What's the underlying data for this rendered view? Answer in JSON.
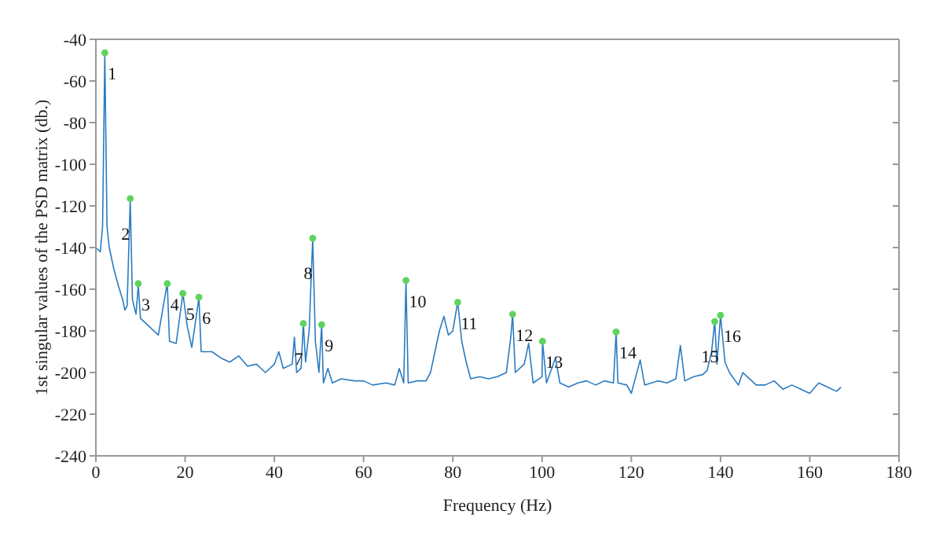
{
  "chart_data": {
    "type": "line",
    "xlabel": "Frequency (Hz)",
    "ylabel": "1st singular values of the PSD matrix (db.)",
    "xlim": [
      0,
      180
    ],
    "xticks": [
      0,
      20,
      40,
      60,
      80,
      100,
      120,
      140,
      160,
      180
    ],
    "ylim": [
      -240,
      -40
    ],
    "yticks": [
      -240,
      -220,
      -200,
      -180,
      -160,
      -140,
      -120,
      -100,
      -80,
      -60,
      -40
    ],
    "series": [
      {
        "color": "#2b7bc0",
        "x": [
          0,
          1,
          1.5,
          2,
          2.5,
          3,
          4,
          5,
          6,
          6.5,
          7,
          7.7,
          8.2,
          9,
          9.5,
          10,
          12,
          14,
          16,
          16.5,
          18,
          19.5,
          20.5,
          21.5,
          23.1,
          23.6,
          26,
          28,
          30,
          32,
          34,
          36,
          38,
          40,
          41,
          42,
          44,
          44.5,
          45,
          46,
          46.5,
          47,
          47.8,
          48.6,
          49.2,
          50,
          50.6,
          51,
          52,
          53,
          55,
          58,
          60,
          62,
          65,
          67,
          68,
          69,
          69.5,
          70,
          72,
          74,
          75,
          76,
          77,
          78,
          79,
          80,
          81.1,
          82,
          83,
          84,
          86,
          88,
          90,
          92,
          93,
          93.4,
          94,
          96,
          97,
          98,
          100,
          100.1,
          101,
          103,
          104,
          106,
          108,
          110,
          112,
          114,
          116,
          116.6,
          117,
          119,
          120,
          122,
          123,
          126,
          128,
          130,
          131,
          132,
          134,
          136,
          137,
          138,
          138.7,
          139.2,
          140,
          141,
          142,
          144,
          145,
          146,
          148,
          150,
          152,
          154,
          156,
          158,
          160,
          162,
          164,
          166,
          167
        ],
        "values": [
          -140,
          -142,
          -130,
          -47,
          -130,
          -140,
          -150,
          -158,
          -165,
          -170,
          -168,
          -117,
          -165,
          -172,
          -158,
          -174,
          -178,
          -182,
          -157,
          -185,
          -186,
          -162,
          -178,
          -188,
          -164,
          -190,
          -190,
          -193,
          -195,
          -192,
          -197,
          -196,
          -200,
          -196,
          -190,
          -198,
          -196,
          -183,
          -200,
          -198,
          -176,
          -195,
          -180,
          -135.5,
          -185,
          -200,
          -177,
          -205,
          -198,
          -205,
          -203,
          -204,
          -204,
          -206,
          -205,
          -206,
          -198,
          -205,
          -156,
          -205,
          -204,
          -204,
          -200,
          -190,
          -180,
          -173,
          -182,
          -180,
          -166,
          -185,
          -195,
          -203,
          -202,
          -203,
          -202,
          -200,
          -183,
          -172,
          -200,
          -196,
          -186,
          -205,
          -202,
          -185,
          -205,
          -193,
          -205,
          -207,
          -205,
          -204,
          -206,
          -204,
          -205,
          -180.5,
          -205,
          -206,
          -210,
          -194,
          -206,
          -204,
          -205,
          -203,
          -187,
          -204,
          -202,
          -201,
          -199,
          -190,
          -175.5,
          -196,
          -172.5,
          -195,
          -200,
          -206,
          -200,
          -202,
          -206,
          -206,
          -204,
          -208,
          -206,
          -208,
          -210,
          -205,
          -207,
          -209,
          -207
        ]
      },
      {
        "type": "scatter",
        "color": "#5fd35f",
        "marker": "circle",
        "x": [
          2,
          7.7,
          9.5,
          16,
          19.5,
          23.1,
          46.5,
          48.6,
          50.6,
          69.5,
          81.1,
          93.4,
          100.1,
          116.6,
          138.7,
          140
        ],
        "values": [
          -46.5,
          -116.5,
          -157.3,
          -157.3,
          -162,
          -163.8,
          -176.5,
          -135.5,
          -177,
          -155.8,
          -166.3,
          -172,
          -185,
          -180.5,
          -175.5,
          -172.5
        ]
      }
    ],
    "annotations": [
      {
        "text": "1",
        "x": 2,
        "y": -46.5
      },
      {
        "text": "2",
        "x": 7.7,
        "y": -116.5
      },
      {
        "text": "3",
        "x": 9.5,
        "y": -157.3
      },
      {
        "text": "4",
        "x": 16,
        "y": -157.3
      },
      {
        "text": "5",
        "x": 19.5,
        "y": -162
      },
      {
        "text": "6",
        "x": 23.1,
        "y": -163.8
      },
      {
        "text": "7",
        "x": 46.5,
        "y": -176.5
      },
      {
        "text": "8",
        "x": 48.6,
        "y": -135.5
      },
      {
        "text": "9",
        "x": 50.6,
        "y": -177
      },
      {
        "text": "10",
        "x": 69.5,
        "y": -155.8
      },
      {
        "text": "11",
        "x": 81.1,
        "y": -166.3
      },
      {
        "text": "12",
        "x": 93.4,
        "y": -172
      },
      {
        "text": "13",
        "x": 100.1,
        "y": -185
      },
      {
        "text": "14",
        "x": 116.6,
        "y": -180.5
      },
      {
        "text": "15",
        "x": 138.7,
        "y": -175.5
      },
      {
        "text": "16",
        "x": 140,
        "y": -172.5
      }
    ]
  }
}
